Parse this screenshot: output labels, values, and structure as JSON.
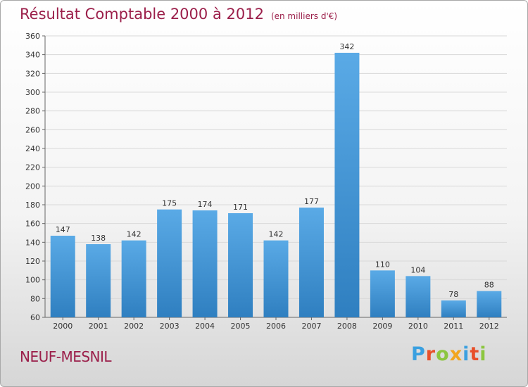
{
  "header": {
    "title": "Résultat Comptable 2000 à 2012",
    "subtitle": "(en milliers d'€)"
  },
  "footer": {
    "city": "NEUF-MESNIL",
    "logo": "Proxiti"
  },
  "colors": {
    "title": "#9b1f4a",
    "bar_top": "#5aaae6",
    "bar_bottom": "#2f7fc0",
    "logo_letters": [
      "#3aa0e0",
      "#e8502a",
      "#8cc63f",
      "#f2a51f",
      "#3aa0e0",
      "#e8502a",
      "#8cc63f"
    ]
  },
  "chart_data": {
    "type": "bar",
    "categories": [
      "2000",
      "2001",
      "2002",
      "2003",
      "2004",
      "2005",
      "2006",
      "2007",
      "2008",
      "2009",
      "2010",
      "2011",
      "2012"
    ],
    "values": [
      147,
      138,
      142,
      175,
      174,
      171,
      142,
      177,
      342,
      110,
      104,
      78,
      88
    ],
    "title": "Résultat Comptable 2000 à 2012",
    "subtitle": "(en milliers d'€)",
    "ylim": [
      60,
      360
    ],
    "yticks": [
      60,
      80,
      100,
      120,
      140,
      160,
      180,
      200,
      220,
      240,
      260,
      280,
      300,
      320,
      340,
      360
    ],
    "grid": true,
    "legend": "none"
  }
}
